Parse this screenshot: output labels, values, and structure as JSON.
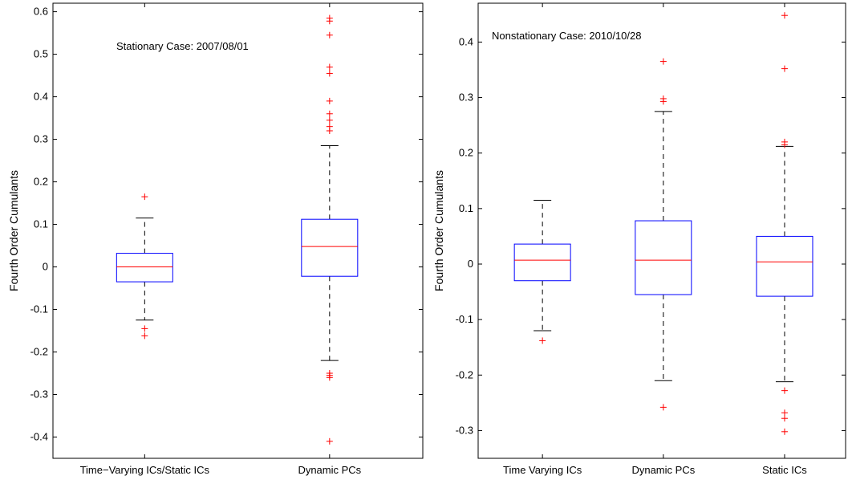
{
  "chart_data": [
    {
      "type": "box",
      "annotation": "Stationary Case: 2007/08/01",
      "ylabel": "Fourth Order Cumulants",
      "ylim": [
        -0.45,
        0.62
      ],
      "yticks": [
        -0.4,
        -0.3,
        -0.2,
        -0.1,
        0,
        0.1,
        0.2,
        0.3,
        0.4,
        0.5,
        0.6
      ],
      "ytick_labels": [
        "-0.4",
        "-0.3",
        "-0.2",
        "-0.1",
        "0",
        "0.1",
        "0.2",
        "0.3",
        "0.4",
        "0.5",
        "0.6"
      ],
      "categories": [
        "Time−Varying ICs/Static ICs",
        "Dynamic PCs"
      ],
      "boxes": [
        {
          "whisker_low": -0.125,
          "q1": -0.035,
          "median": 0.0,
          "q3": 0.032,
          "whisker_high": 0.115,
          "outliers": [
            0.165,
            -0.145,
            -0.162
          ]
        },
        {
          "whisker_low": -0.22,
          "q1": -0.022,
          "median": 0.048,
          "q3": 0.112,
          "whisker_high": 0.285,
          "outliers": [
            0.585,
            0.578,
            0.545,
            0.47,
            0.455,
            0.39,
            0.36,
            0.345,
            0.33,
            0.32,
            -0.25,
            -0.255,
            -0.26,
            -0.41
          ]
        }
      ]
    },
    {
      "type": "box",
      "annotation": "Nonstationary Case: 2010/10/28",
      "ylabel": "Fourth Order Cumulants",
      "ylim": [
        -0.35,
        0.47
      ],
      "yticks": [
        -0.3,
        -0.2,
        -0.1,
        0,
        0.1,
        0.2,
        0.3,
        0.4
      ],
      "ytick_labels": [
        "-0.3",
        "-0.2",
        "-0.1",
        "0",
        "0.1",
        "0.2",
        "0.3",
        "0.4"
      ],
      "categories": [
        "Time Varying ICs",
        "Dynamic PCs",
        "Static ICs"
      ],
      "boxes": [
        {
          "whisker_low": -0.12,
          "q1": -0.03,
          "median": 0.007,
          "q3": 0.036,
          "whisker_high": 0.115,
          "outliers": [
            -0.138
          ]
        },
        {
          "whisker_low": -0.21,
          "q1": -0.055,
          "median": 0.007,
          "q3": 0.078,
          "whisker_high": 0.275,
          "outliers": [
            0.365,
            0.298,
            0.293,
            -0.258
          ]
        },
        {
          "whisker_low": -0.212,
          "q1": -0.058,
          "median": 0.004,
          "q3": 0.05,
          "whisker_high": 0.212,
          "outliers": [
            0.448,
            0.352,
            0.22,
            0.215,
            -0.228,
            -0.268,
            -0.278,
            -0.302
          ]
        }
      ]
    }
  ],
  "colors": {
    "box": "#0000ff",
    "median": "#ff0000",
    "whisker": "#000000",
    "outlier": "#ff0000"
  }
}
